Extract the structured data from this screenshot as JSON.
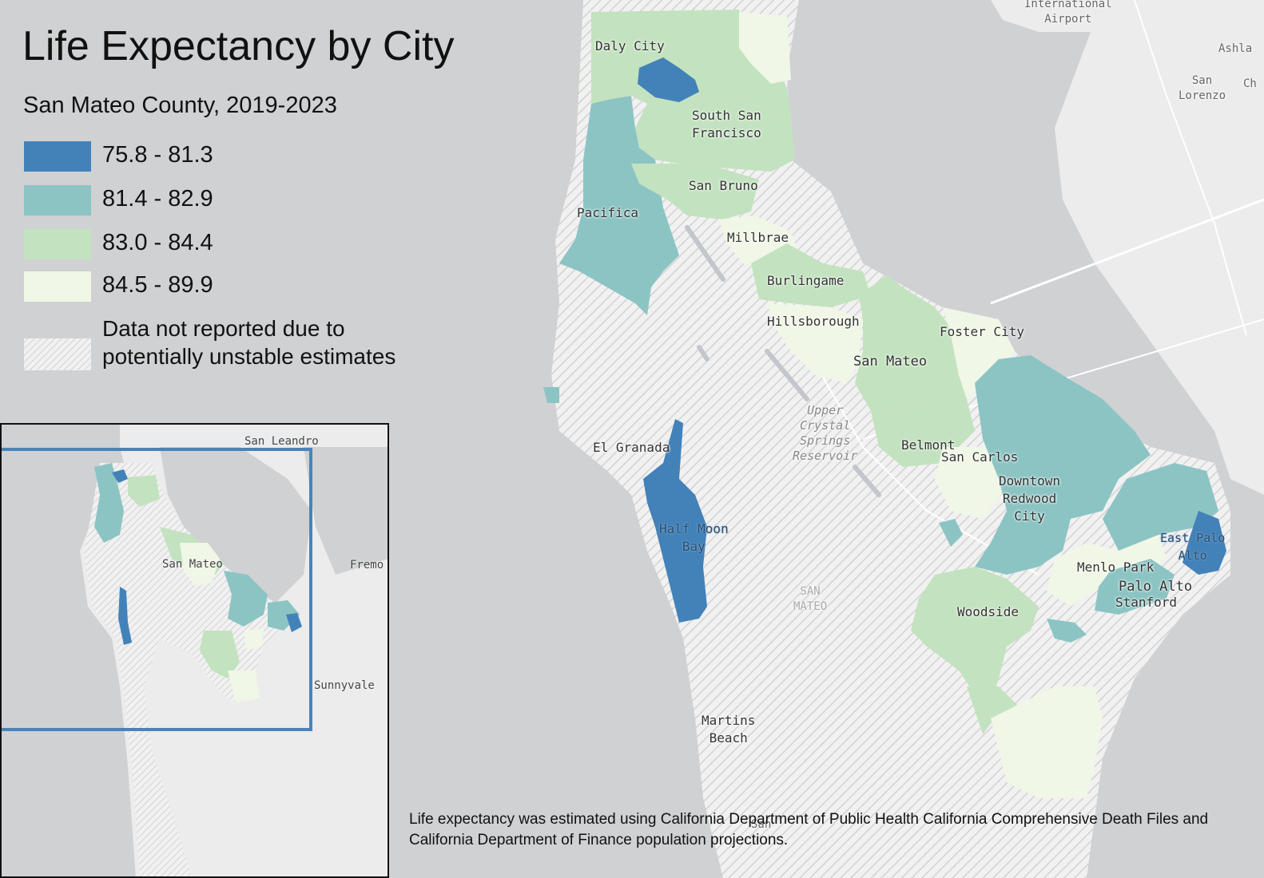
{
  "title": "Life Expectancy by City",
  "subtitle": "San Mateo County, 2019-2023",
  "legend": {
    "classes": [
      {
        "label": "75.8 - 81.3",
        "color": "#4382b9"
      },
      {
        "label": "81.4 - 82.9",
        "color": "#8cc4c4"
      },
      {
        "label": "83.0 - 84.4",
        "color": "#c3e2bf"
      },
      {
        "label": "84.5 - 89.9",
        "color": "#f0f7e6"
      }
    ],
    "no_data_label": "Data not reported due to potentially unstable estimates"
  },
  "colors": {
    "water": "#cfd1d3",
    "land": "#ececec",
    "hatch": "#d4d4d4",
    "inset_border": "#111111",
    "extent_box": "#4a83b9"
  },
  "map_labels": {
    "international_airport": "International\nAirport",
    "ashland": "Ashla",
    "san_lorenzo": "San\nLorenzo",
    "ch": "Ch",
    "daly_city": "Daly City",
    "south_san_francisco": "South San\nFrancisco",
    "san_bruno": "San Bruno",
    "pacifica": "Pacifica",
    "millbrae": "Millbrae",
    "burlingame": "Burlingame",
    "hillsborough": "Hillsborough",
    "foster_city": "Foster City",
    "san_mateo": "San Mateo",
    "upper_crystal_springs": "Upper\nCrystal\nSprings\nReservoir",
    "el_granada": "El Granada",
    "belmont": "Belmont",
    "san_carlos": "San Carlos",
    "downtown_redwood_city": "Downtown\nRedwood\nCity",
    "half_moon_bay": "Half Moon\nBay",
    "east_palo_alto": "East Palo\nAlto",
    "menlo_park": "Menlo Park",
    "palo_alto": "Palo Alto",
    "stanford": "Stanford",
    "san_mateo_county": "SAN\nMATEO",
    "woodside": "Woodside",
    "martins_beach": "Martins\nBeach",
    "san": "San"
  },
  "inset": {
    "labels": {
      "san_leandro": "San Leandro",
      "fremont": "Fremo",
      "san_mateo": "San Mateo",
      "sunnyvale": "Sunnyvale"
    }
  },
  "footnote": "Life expectancy was estimated using California Department of Public Health California Comprehensive Death Files and California Department of Finance population projections."
}
